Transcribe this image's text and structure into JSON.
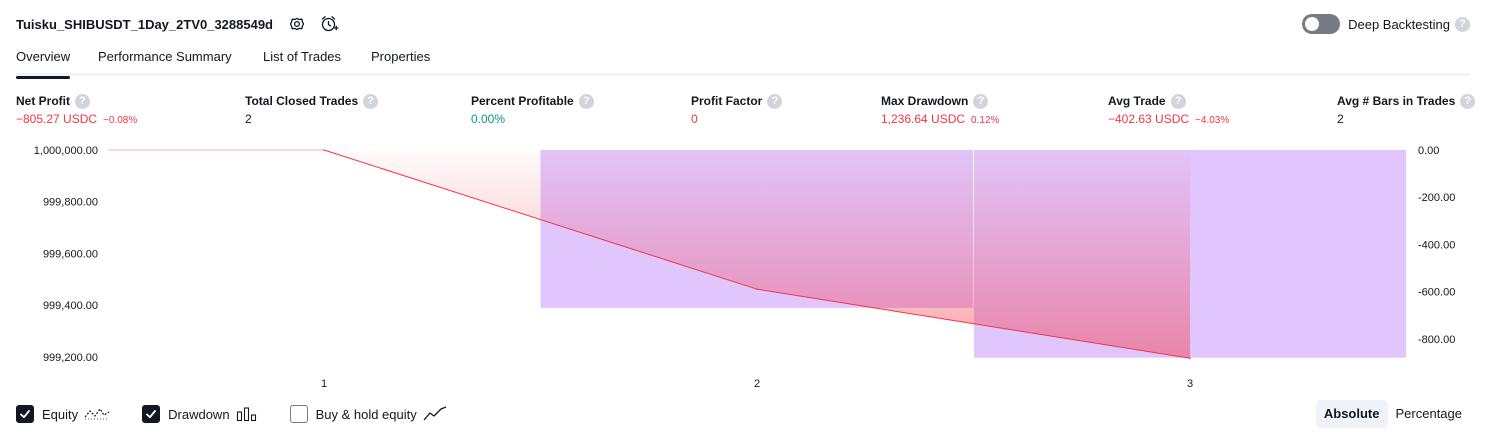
{
  "header": {
    "strategy_name": "Tuisku_SHIBUSDT_1Day_2TV0_3288549d",
    "settings_icon": "gear-icon",
    "alert_icon": "add-alert-icon",
    "deep_backtesting_label": "Deep Backtesting",
    "deep_backtesting_on": false,
    "help_glyph": "?"
  },
  "tabs": [
    {
      "label": "Overview",
      "active": true
    },
    {
      "label": "Performance Summary",
      "active": false
    },
    {
      "label": "List of Trades",
      "active": false
    },
    {
      "label": "Properties",
      "active": false
    }
  ],
  "metrics": [
    {
      "label": "Net Profit",
      "value": "−805.27 USDC",
      "sub": "−0.08%",
      "tone": "neg"
    },
    {
      "label": "Total Closed Trades",
      "value": "2",
      "sub": "",
      "tone": "neu"
    },
    {
      "label": "Percent Profitable",
      "value": "0.00%",
      "sub": "",
      "tone": "pos"
    },
    {
      "label": "Profit Factor",
      "value": "0",
      "sub": "",
      "tone": "neg"
    },
    {
      "label": "Max Drawdown",
      "value": "1,236.64 USDC",
      "sub": "0.12%",
      "tone": "neg"
    },
    {
      "label": "Avg Trade",
      "value": "−402.63 USDC",
      "sub": "−4.03%",
      "tone": "neg"
    },
    {
      "label": "Avg # Bars in Trades",
      "value": "2",
      "sub": "",
      "tone": "neu"
    }
  ],
  "chart_data": {
    "type": "line",
    "x": [
      1,
      2,
      3
    ],
    "x_tick_labels": [
      "1",
      "2",
      "3"
    ],
    "equity": {
      "x": [
        1,
        2,
        3
      ],
      "values": [
        1000000.0,
        999461.83,
        999194.73
      ],
      "color": "#f23645"
    },
    "drawdown": {
      "type": "bar",
      "bars": [
        {
          "from": 1.5,
          "to": 2.5,
          "value": -669.0
        },
        {
          "from": 2.5,
          "to": 3.5,
          "value": -880.0
        }
      ],
      "color": "#e1c6fd"
    },
    "left_axis": {
      "ticks": [
        1000000,
        999800,
        999600,
        999400,
        999200
      ],
      "tick_labels": [
        "1,000,000.00",
        "999,800.00",
        "999,600.00",
        "999,400.00",
        "999,200.00"
      ],
      "range": [
        999188,
        1000000
      ]
    },
    "right_axis": {
      "ticks": [
        0,
        -200,
        -400,
        -600,
        -800
      ],
      "tick_labels": [
        "0.00",
        "-200.00",
        "-400.00",
        "-600.00",
        "-800.00"
      ],
      "range": [
        -890,
        0
      ]
    },
    "x_range": [
      1,
      3.5
    ],
    "grid": false
  },
  "legend": [
    {
      "label": "Equity",
      "checked": true,
      "icon": "equity-line-icon"
    },
    {
      "label": "Drawdown",
      "checked": true,
      "icon": "drawdown-bars-icon"
    },
    {
      "label": "Buy & hold equity",
      "checked": false,
      "icon": "buy-hold-line-icon"
    }
  ],
  "mode": {
    "absolute_label": "Absolute",
    "percentage_label": "Percentage",
    "active": "absolute"
  }
}
